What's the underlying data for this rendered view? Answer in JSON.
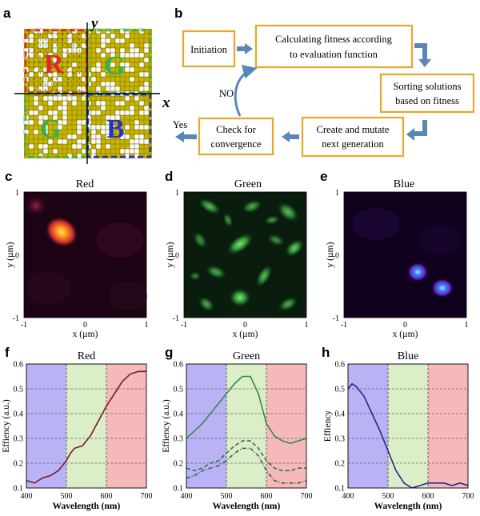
{
  "panels": {
    "a": "a",
    "b": "b",
    "c": "c",
    "d": "d",
    "e": "e",
    "f": "f",
    "g": "g",
    "h": "h"
  },
  "a": {
    "x_axis": "x",
    "y_axis": "y",
    "r": "R",
    "g1": "G",
    "g2": "G",
    "b": "B",
    "digits": [
      "1",
      "0",
      "1",
      "1",
      "0",
      "1",
      "0",
      "0",
      "1",
      "0",
      "1",
      "1"
    ]
  },
  "flow": {
    "initiation": "Initiation",
    "fitness_1": "Calculating fitness according",
    "fitness_2": "to  evaluation function",
    "sorting_1": "Sorting solutions",
    "sorting_2": "based on fitness",
    "mutate_1": "Create  and mutate",
    "mutate_2": "next generation",
    "convergence_1": "Check for",
    "convergence_2": "convergence",
    "no": "NO",
    "yes": "Yes"
  },
  "maps": {
    "red": {
      "title": "Red"
    },
    "green": {
      "title": "Green"
    },
    "blue": {
      "title": "Blue"
    },
    "xlabel": "x (µm)",
    "ylabel": "y (µm)",
    "xticks": [
      "-1",
      "0",
      "1"
    ],
    "yticks": [
      "1",
      "0",
      "-1"
    ]
  },
  "chart_data": [
    {
      "type": "line",
      "panel": "f",
      "title": "Red",
      "xlabel": "Wavelength (nm)",
      "ylabel": "Effiency (a.u.)",
      "xlim": [
        400,
        700
      ],
      "ylim": [
        0.1,
        0.6
      ],
      "xticks": [
        400,
        500,
        600,
        700
      ],
      "yticks": [
        0.1,
        0.2,
        0.3,
        0.4,
        0.5,
        0.6
      ],
      "bands": [
        {
          "from": 400,
          "to": 500,
          "color": "#b9b3f5"
        },
        {
          "from": 500,
          "to": 600,
          "color": "#dbeec8"
        },
        {
          "from": 600,
          "to": 700,
          "color": "#f6b9b9"
        }
      ],
      "series": [
        {
          "color": "#7a1a2a",
          "x": [
            400,
            420,
            440,
            460,
            480,
            500,
            510,
            520,
            540,
            560,
            580,
            600,
            620,
            640,
            660,
            680,
            700
          ],
          "y": [
            0.13,
            0.12,
            0.14,
            0.15,
            0.17,
            0.21,
            0.24,
            0.26,
            0.27,
            0.31,
            0.37,
            0.43,
            0.48,
            0.53,
            0.56,
            0.57,
            0.57
          ]
        }
      ]
    },
    {
      "type": "line",
      "panel": "g",
      "title": "Green",
      "xlabel": "Wavelength (nm)",
      "ylabel": "Effiency (a.u.)",
      "xlim": [
        400,
        700
      ],
      "ylim": [
        0.1,
        0.6
      ],
      "xticks": [
        400,
        500,
        600,
        700
      ],
      "yticks": [
        0.1,
        0.2,
        0.3,
        0.4,
        0.5,
        0.6
      ],
      "bands": [
        {
          "from": 400,
          "to": 500,
          "color": "#b9b3f5"
        },
        {
          "from": 500,
          "to": 600,
          "color": "#dbeec8"
        },
        {
          "from": 600,
          "to": 700,
          "color": "#f6b9b9"
        }
      ],
      "series": [
        {
          "color": "#2f8a4a",
          "dash": "",
          "x": [
            400,
            420,
            440,
            460,
            480,
            500,
            520,
            540,
            560,
            580,
            600,
            620,
            640,
            660,
            680,
            700
          ],
          "y": [
            0.3,
            0.33,
            0.36,
            0.4,
            0.44,
            0.48,
            0.52,
            0.55,
            0.55,
            0.48,
            0.36,
            0.31,
            0.29,
            0.28,
            0.29,
            0.3
          ]
        },
        {
          "color": "#2f6e4a",
          "dash": "5,3",
          "x": [
            400,
            420,
            440,
            460,
            480,
            500,
            520,
            540,
            560,
            580,
            600,
            620,
            640,
            660,
            680,
            700
          ],
          "y": [
            0.18,
            0.17,
            0.18,
            0.2,
            0.21,
            0.24,
            0.27,
            0.29,
            0.29,
            0.26,
            0.21,
            0.18,
            0.17,
            0.17,
            0.18,
            0.18
          ]
        },
        {
          "color": "#3a5a5a",
          "dash": "5,2,1,2",
          "x": [
            400,
            420,
            440,
            460,
            480,
            500,
            520,
            540,
            560,
            580,
            600,
            620,
            640,
            660,
            680,
            700
          ],
          "y": [
            0.14,
            0.15,
            0.17,
            0.18,
            0.19,
            0.21,
            0.24,
            0.26,
            0.26,
            0.23,
            0.17,
            0.13,
            0.12,
            0.12,
            0.12,
            0.13
          ]
        }
      ]
    },
    {
      "type": "line",
      "panel": "h",
      "title": "Blue",
      "xlabel": "Wavelength (nm)",
      "ylabel": "Effiency",
      "xlim": [
        400,
        700
      ],
      "ylim": [
        0.1,
        0.6
      ],
      "xticks": [
        400,
        500,
        600,
        700
      ],
      "yticks": [
        0.1,
        0.2,
        0.3,
        0.4,
        0.5,
        0.6
      ],
      "bands": [
        {
          "from": 400,
          "to": 500,
          "color": "#b9b3f5"
        },
        {
          "from": 500,
          "to": 600,
          "color": "#dbeec8"
        },
        {
          "from": 600,
          "to": 700,
          "color": "#f6b9b9"
        }
      ],
      "series": [
        {
          "color": "#1f2a90",
          "x": [
            400,
            410,
            420,
            440,
            460,
            480,
            500,
            520,
            540,
            560,
            580,
            600,
            620,
            640,
            660,
            680,
            700
          ],
          "y": [
            0.5,
            0.52,
            0.51,
            0.47,
            0.4,
            0.33,
            0.25,
            0.17,
            0.12,
            0.1,
            0.11,
            0.12,
            0.12,
            0.12,
            0.11,
            0.12,
            0.11
          ]
        }
      ]
    }
  ]
}
